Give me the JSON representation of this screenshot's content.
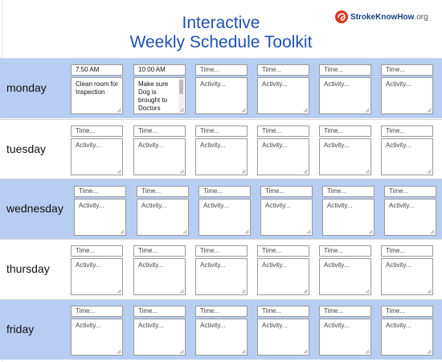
{
  "header": {
    "title_line1": "Interactive",
    "title_line2": "Weekly Schedule Toolkit",
    "logo_text": "StrokeKnowHow",
    "logo_suffix": ".org"
  },
  "placeholders": {
    "time": "Time...",
    "activity": "Activity..."
  },
  "days": [
    {
      "label": "monday",
      "slots": [
        {
          "time": "7:50 AM",
          "activity": "Clean room for Inspection"
        },
        {
          "time": "10:00 AM",
          "activity": "Make sure Dog is brought to Doctors"
        },
        {
          "time": "",
          "activity": ""
        },
        {
          "time": "",
          "activity": ""
        },
        {
          "time": "",
          "activity": ""
        },
        {
          "time": "",
          "activity": ""
        }
      ]
    },
    {
      "label": "tuesday",
      "slots": [
        {
          "time": "",
          "activity": ""
        },
        {
          "time": "",
          "activity": ""
        },
        {
          "time": "",
          "activity": ""
        },
        {
          "time": "",
          "activity": ""
        },
        {
          "time": "",
          "activity": ""
        },
        {
          "time": "",
          "activity": ""
        }
      ]
    },
    {
      "label": "wednesday",
      "slots": [
        {
          "time": "",
          "activity": ""
        },
        {
          "time": "",
          "activity": ""
        },
        {
          "time": "",
          "activity": ""
        },
        {
          "time": "",
          "activity": ""
        },
        {
          "time": "",
          "activity": ""
        },
        {
          "time": "",
          "activity": ""
        }
      ]
    },
    {
      "label": "thursday",
      "slots": [
        {
          "time": "",
          "activity": ""
        },
        {
          "time": "",
          "activity": ""
        },
        {
          "time": "",
          "activity": ""
        },
        {
          "time": "",
          "activity": ""
        },
        {
          "time": "",
          "activity": ""
        },
        {
          "time": "",
          "activity": ""
        }
      ]
    },
    {
      "label": "friday",
      "slots": [
        {
          "time": "",
          "activity": ""
        },
        {
          "time": "",
          "activity": ""
        },
        {
          "time": "",
          "activity": ""
        },
        {
          "time": "",
          "activity": ""
        },
        {
          "time": "",
          "activity": ""
        },
        {
          "time": "",
          "activity": ""
        }
      ]
    }
  ]
}
